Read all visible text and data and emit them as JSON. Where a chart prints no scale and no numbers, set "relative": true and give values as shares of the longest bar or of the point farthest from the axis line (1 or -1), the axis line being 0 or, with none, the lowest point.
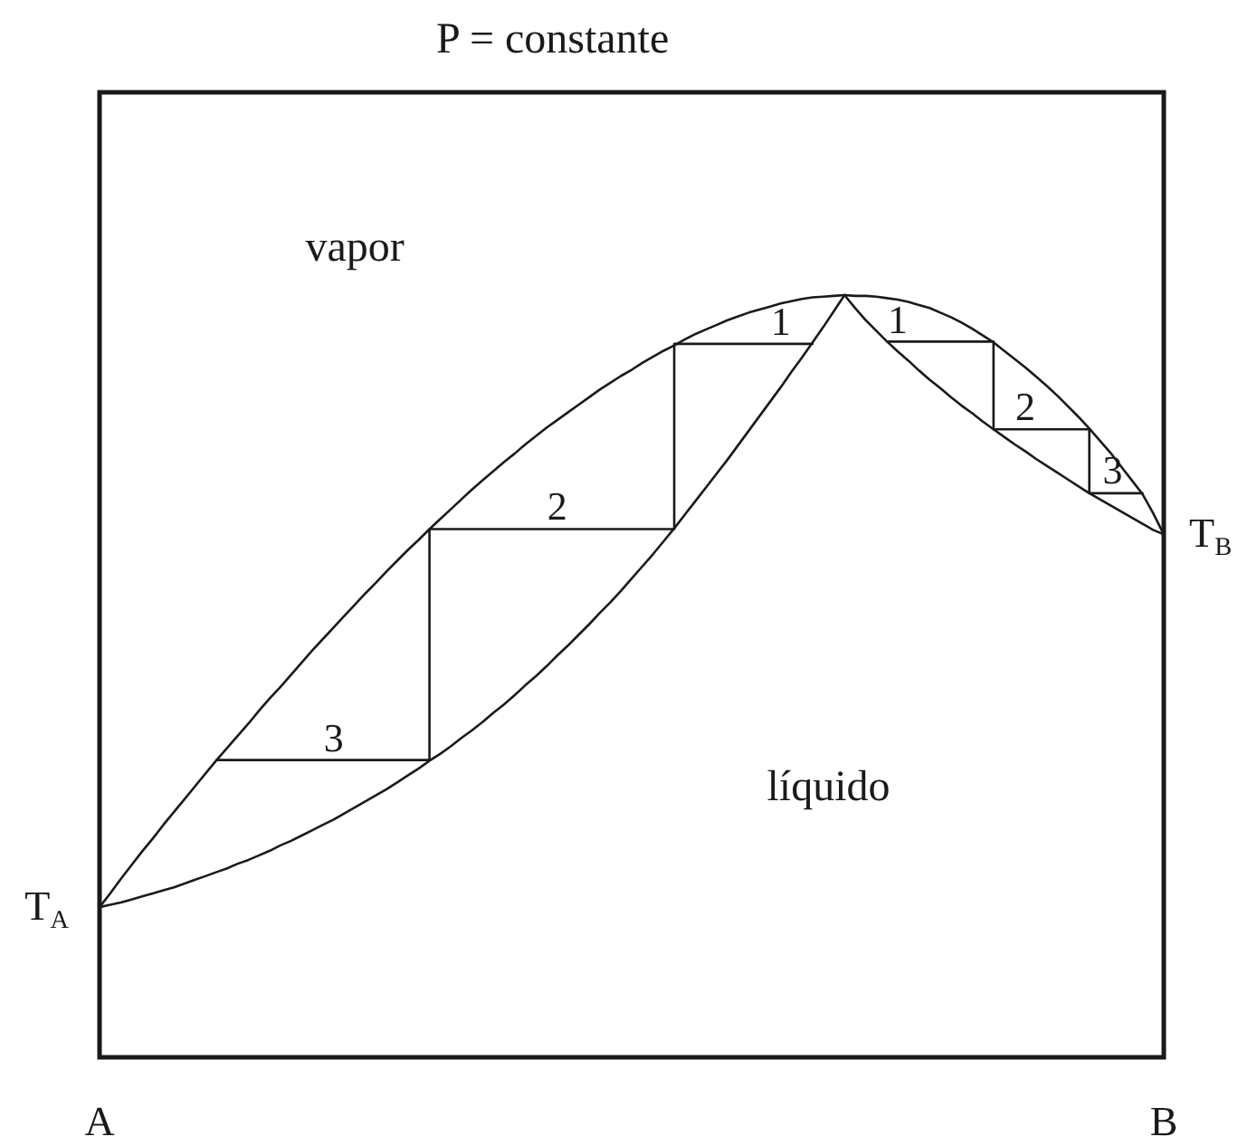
{
  "chart_data": {
    "type": "line",
    "title": "P = constante",
    "relative": true,
    "tick_labels": "x",
    "marker": "none",
    "categories": [
      "A",
      null,
      null,
      null,
      null,
      null,
      null,
      null,
      null,
      null,
      null,
      null,
      null,
      null,
      null,
      null,
      null,
      null,
      null,
      null,
      null,
      null,
      null,
      null,
      null,
      null,
      null,
      null,
      null,
      null,
      null,
      null,
      null,
      null,
      null,
      null,
      null,
      null,
      null,
      null,
      null,
      null,
      null,
      null,
      null,
      null,
      null,
      null,
      null,
      null,
      null,
      null,
      null,
      null,
      null,
      null,
      null,
      null,
      null,
      null,
      null,
      null,
      null,
      null,
      null,
      null,
      null,
      null,
      null,
      null,
      null,
      null,
      null,
      null,
      null,
      null,
      null,
      null,
      null,
      null,
      null,
      null,
      null,
      null,
      null,
      null,
      null,
      null,
      null,
      null,
      null,
      null,
      null,
      null,
      null,
      null,
      null,
      null,
      null,
      null,
      "B"
    ],
    "series": [
      {
        "color": "#1a1a1a",
        "values": [
          0.197,
          0.215,
          0.234,
          0.252,
          0.27,
          0.287,
          0.305,
          0.322,
          0.339,
          0.356,
          0.373,
          0.39,
          0.406,
          0.422,
          0.438,
          0.455,
          0.471,
          0.486,
          0.502,
          0.518,
          0.534,
          0.549,
          0.564,
          0.579,
          0.594,
          0.609,
          0.623,
          0.638,
          0.652,
          0.666,
          0.679,
          0.693,
          0.706,
          0.719,
          0.732,
          0.745,
          0.757,
          0.769,
          0.781,
          0.792,
          0.804,
          0.815,
          0.826,
          0.836,
          0.846,
          0.856,
          0.866,
          0.876,
          0.885,
          0.894,
          0.902,
          0.911,
          0.919,
          0.927,
          0.934,
          0.942,
          0.949,
          0.955,
          0.961,
          0.967,
          0.972,
          0.977,
          0.981,
          0.985,
          0.989,
          0.992,
          0.995,
          0.997,
          0.998,
          0.999,
          1,
          0.999,
          0.999,
          0.998,
          0.996,
          0.994,
          0.991,
          0.987,
          0.983,
          0.977,
          0.971,
          0.964,
          0.956,
          0.947,
          0.938,
          0.927,
          0.916,
          0.905,
          0.893,
          0.881,
          0.868,
          0.854,
          0.84,
          0.825,
          0.809,
          0.793,
          0.775,
          0.757,
          0.739,
          0.714,
          0.686
        ]
      },
      {
        "color": "#1a1a1a",
        "values": [
          0.197,
          0.2,
          0.203,
          0.207,
          0.211,
          0.215,
          0.219,
          0.223,
          0.228,
          0.233,
          0.238,
          0.243,
          0.248,
          0.254,
          0.259,
          0.265,
          0.271,
          0.278,
          0.284,
          0.291,
          0.298,
          0.305,
          0.312,
          0.32,
          0.328,
          0.336,
          0.344,
          0.352,
          0.361,
          0.37,
          0.379,
          0.389,
          0.398,
          0.408,
          0.419,
          0.429,
          0.44,
          0.452,
          0.463,
          0.475,
          0.488,
          0.5,
          0.513,
          0.527,
          0.54,
          0.554,
          0.568,
          0.583,
          0.597,
          0.612,
          0.628,
          0.644,
          0.66,
          0.677,
          0.694,
          0.712,
          0.73,
          0.748,
          0.766,
          0.784,
          0.803,
          0.822,
          0.841,
          0.86,
          0.879,
          0.899,
          0.918,
          0.938,
          0.958,
          0.979,
          1,
          null,
          null,
          null,
          null,
          null,
          null,
          null,
          null,
          null,
          null,
          null,
          null,
          null,
          null,
          null,
          null,
          null,
          null,
          null,
          null,
          null,
          null,
          null,
          null,
          null,
          null,
          null,
          null,
          null,
          null
        ]
      },
      {
        "color": "#1a1a1a",
        "values": [
          null,
          null,
          null,
          null,
          null,
          null,
          null,
          null,
          null,
          null,
          null,
          null,
          null,
          null,
          null,
          null,
          null,
          null,
          null,
          null,
          null,
          null,
          null,
          null,
          null,
          null,
          null,
          null,
          null,
          null,
          null,
          null,
          null,
          null,
          null,
          null,
          null,
          null,
          null,
          null,
          null,
          null,
          null,
          null,
          null,
          null,
          null,
          null,
          null,
          null,
          null,
          null,
          null,
          null,
          null,
          null,
          null,
          null,
          null,
          null,
          null,
          null,
          null,
          null,
          null,
          null,
          null,
          null,
          null,
          null,
          1,
          0.983,
          0.967,
          0.953,
          0.939,
          0.926,
          0.914,
          0.901,
          0.889,
          0.878,
          0.866,
          0.855,
          0.845,
          0.834,
          0.824,
          0.814,
          0.804,
          0.795,
          0.785,
          0.776,
          0.767,
          0.758,
          0.749,
          0.74,
          0.732,
          0.724,
          0.716,
          0.708,
          0.7,
          0.692,
          0.686
        ]
      },
      {
        "type": "step",
        "color": "#1a1a1a",
        "values": [
          null,
          null,
          null,
          null,
          null,
          null,
          null,
          null,
          null,
          null,
          null,
          0.39,
          0.39,
          0.39,
          0.39,
          0.39,
          0.39,
          0.39,
          0.39,
          0.39,
          0.39,
          0.39,
          0.39,
          0.39,
          0.39,
          0.39,
          0.39,
          0.39,
          0.39,
          0.39,
          0.39,
          0.693,
          0.693,
          0.693,
          0.693,
          0.693,
          0.693,
          0.693,
          0.693,
          0.693,
          0.693,
          0.693,
          0.693,
          0.693,
          0.693,
          0.693,
          0.693,
          0.693,
          0.693,
          0.693,
          0.693,
          0.693,
          0.693,
          0.693,
          0.936,
          0.936,
          0.936,
          0.936,
          0.936,
          0.936,
          0.936,
          0.936,
          0.936,
          0.936,
          0.936,
          0.936,
          0.936,
          0.936,
          null,
          null,
          null,
          null,
          null,
          null,
          null,
          null,
          null,
          null,
          null,
          null,
          null,
          null,
          null,
          null,
          null,
          null,
          null,
          null,
          null,
          null,
          null,
          null,
          null,
          null,
          null,
          null,
          null,
          null,
          null,
          null,
          null
        ]
      },
      {
        "type": "step",
        "color": "#1a1a1a",
        "values": [
          null,
          null,
          null,
          null,
          null,
          null,
          null,
          null,
          null,
          null,
          null,
          null,
          null,
          null,
          null,
          null,
          null,
          null,
          null,
          null,
          null,
          null,
          null,
          null,
          null,
          null,
          null,
          null,
          null,
          null,
          null,
          null,
          null,
          null,
          null,
          null,
          null,
          null,
          null,
          null,
          null,
          null,
          null,
          null,
          null,
          null,
          null,
          null,
          null,
          null,
          null,
          null,
          null,
          null,
          null,
          null,
          null,
          null,
          null,
          null,
          null,
          null,
          null,
          null,
          null,
          null,
          null,
          null,
          null,
          null,
          null,
          null,
          null,
          null,
          0.939,
          0.939,
          0.939,
          0.939,
          0.939,
          0.939,
          0.939,
          0.939,
          0.939,
          0.939,
          0.824,
          0.824,
          0.824,
          0.824,
          0.824,
          0.824,
          0.824,
          0.824,
          0.824,
          0.74,
          0.74,
          0.74,
          0.74,
          0.74,
          0.74,
          null,
          null
        ]
      }
    ],
    "annotations": [
      "vapor",
      "líquido",
      {
        "text": "T$_{A}$",
        "x": "A",
        "y": 0.197
      },
      {
        "text": "T$_{B}$",
        "x": "B",
        "y": 0.686
      },
      {
        "text": "3",
        "y": 0.39
      },
      {
        "text": "2",
        "y": 0.693
      },
      {
        "text": "1",
        "y": 0.936
      },
      {
        "text": "1",
        "y": 0.939
      },
      {
        "text": "2",
        "y": 0.824
      },
      {
        "text": "3",
        "y": 0.74
      }
    ]
  }
}
